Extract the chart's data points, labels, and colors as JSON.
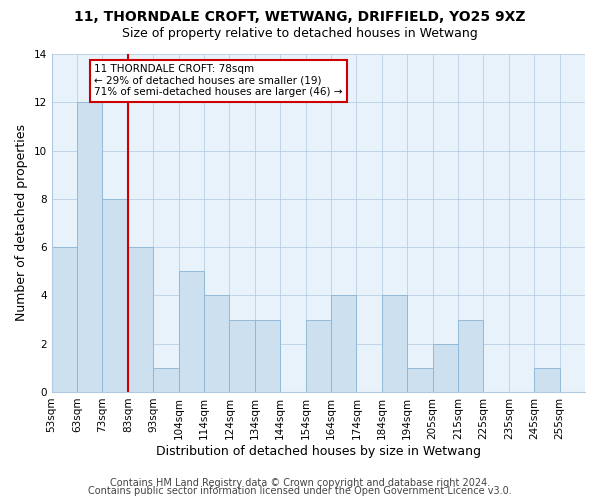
{
  "title": "11, THORNDALE CROFT, WETWANG, DRIFFIELD, YO25 9XZ",
  "subtitle": "Size of property relative to detached houses in Wetwang",
  "xlabel": "Distribution of detached houses by size in Wetwang",
  "ylabel": "Number of detached properties",
  "bar_labels": [
    "53sqm",
    "63sqm",
    "73sqm",
    "83sqm",
    "93sqm",
    "104sqm",
    "114sqm",
    "124sqm",
    "134sqm",
    "144sqm",
    "154sqm",
    "164sqm",
    "174sqm",
    "184sqm",
    "194sqm",
    "205sqm",
    "215sqm",
    "225sqm",
    "235sqm",
    "245sqm",
    "255sqm"
  ],
  "bar_values": [
    6,
    12,
    8,
    6,
    1,
    5,
    4,
    3,
    3,
    0,
    3,
    4,
    0,
    4,
    1,
    2,
    3,
    0,
    0,
    1,
    0
  ],
  "bar_color": "#cce0f0",
  "bar_edge_color": "#8ab4d4",
  "redline_after_index": 2,
  "annotation_title": "11 THORNDALE CROFT: 78sqm",
  "annotation_line1": "← 29% of detached houses are smaller (19)",
  "annotation_line2": "71% of semi-detached houses are larger (46) →",
  "annotation_box_color": "#ffffff",
  "annotation_box_edge": "#cc0000",
  "redline_color": "#cc0000",
  "ylim": [
    0,
    14
  ],
  "yticks": [
    0,
    2,
    4,
    6,
    8,
    10,
    12,
    14
  ],
  "plot_bg_color": "#e8f2fb",
  "footer1": "Contains HM Land Registry data © Crown copyright and database right 2024.",
  "footer2": "Contains public sector information licensed under the Open Government Licence v3.0.",
  "title_fontsize": 10,
  "subtitle_fontsize": 9,
  "axis_label_fontsize": 9,
  "tick_fontsize": 7.5,
  "annotation_fontsize": 7.5,
  "footer_fontsize": 7
}
